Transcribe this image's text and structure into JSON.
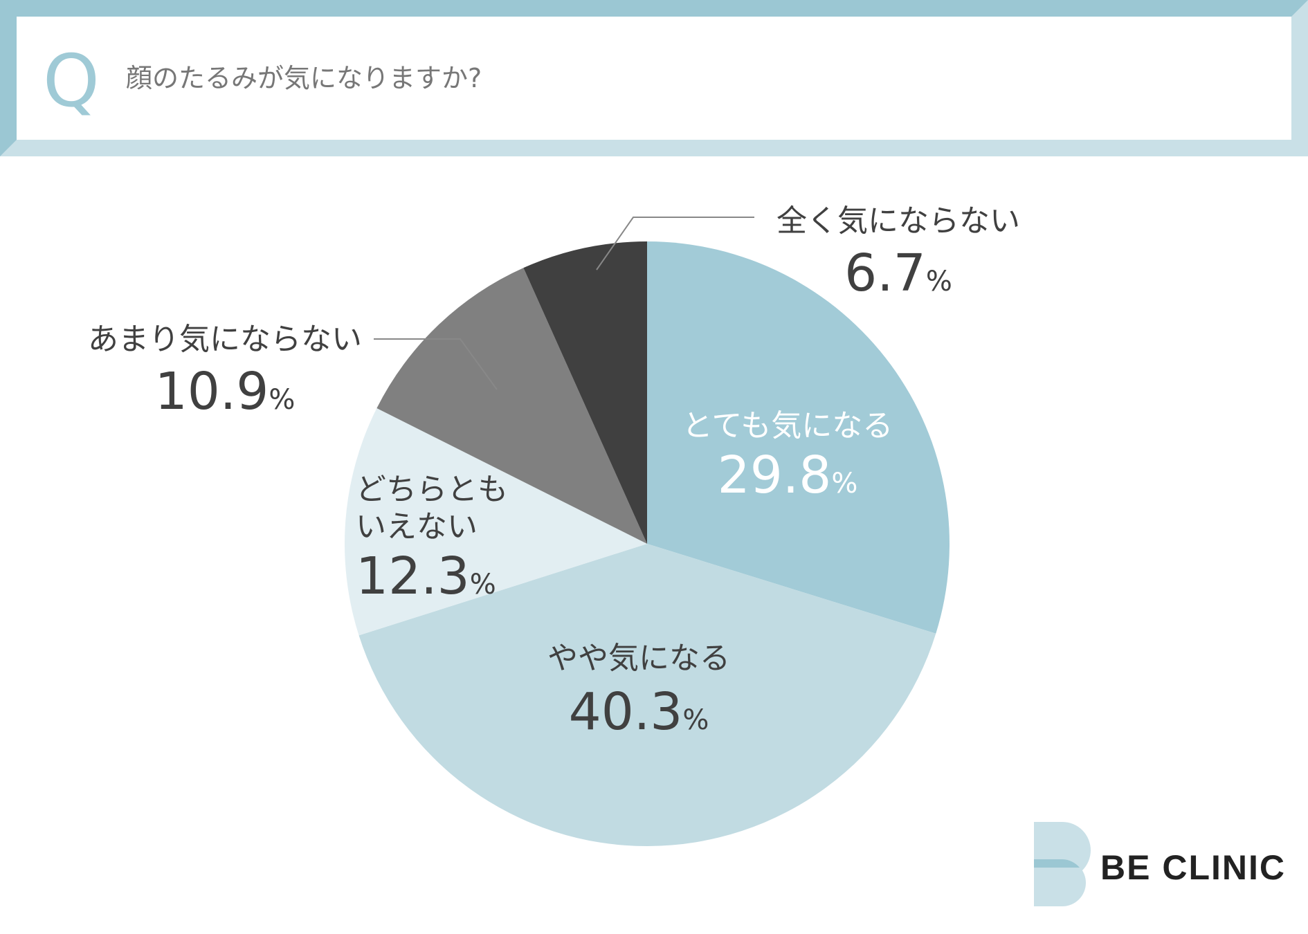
{
  "header": {
    "q_letter": "Q",
    "question": "顔のたるみが気になりますか?"
  },
  "colors": {
    "frame_dark": "#9bc7d3",
    "frame_light": "#c9e0e7",
    "q_letter": "#9fcad6"
  },
  "chart_data": {
    "type": "pie",
    "start": "12 o'clock, clockwise",
    "unit": "%",
    "slices": [
      {
        "label": "とても気になる",
        "value": 29.8,
        "value_text": "29.8",
        "color": "#a2cbd7"
      },
      {
        "label": "やや気になる",
        "value": 40.3,
        "value_text": "40.3",
        "color": "#c1dbe2"
      },
      {
        "label": "どちらともいえない",
        "label_lines": [
          "どちらとも",
          "いえない"
        ],
        "value": 12.3,
        "value_text": "12.3",
        "color": "#e2eef2"
      },
      {
        "label": "あまり気にならない",
        "value": 10.9,
        "value_text": "10.9",
        "color": "#808080"
      },
      {
        "label": "全く気にならない",
        "value": 6.7,
        "value_text": "6.7",
        "color": "#404040"
      }
    ]
  },
  "logo": {
    "text": "BE CLINIC",
    "icon": "be-clinic-logo-icon"
  }
}
